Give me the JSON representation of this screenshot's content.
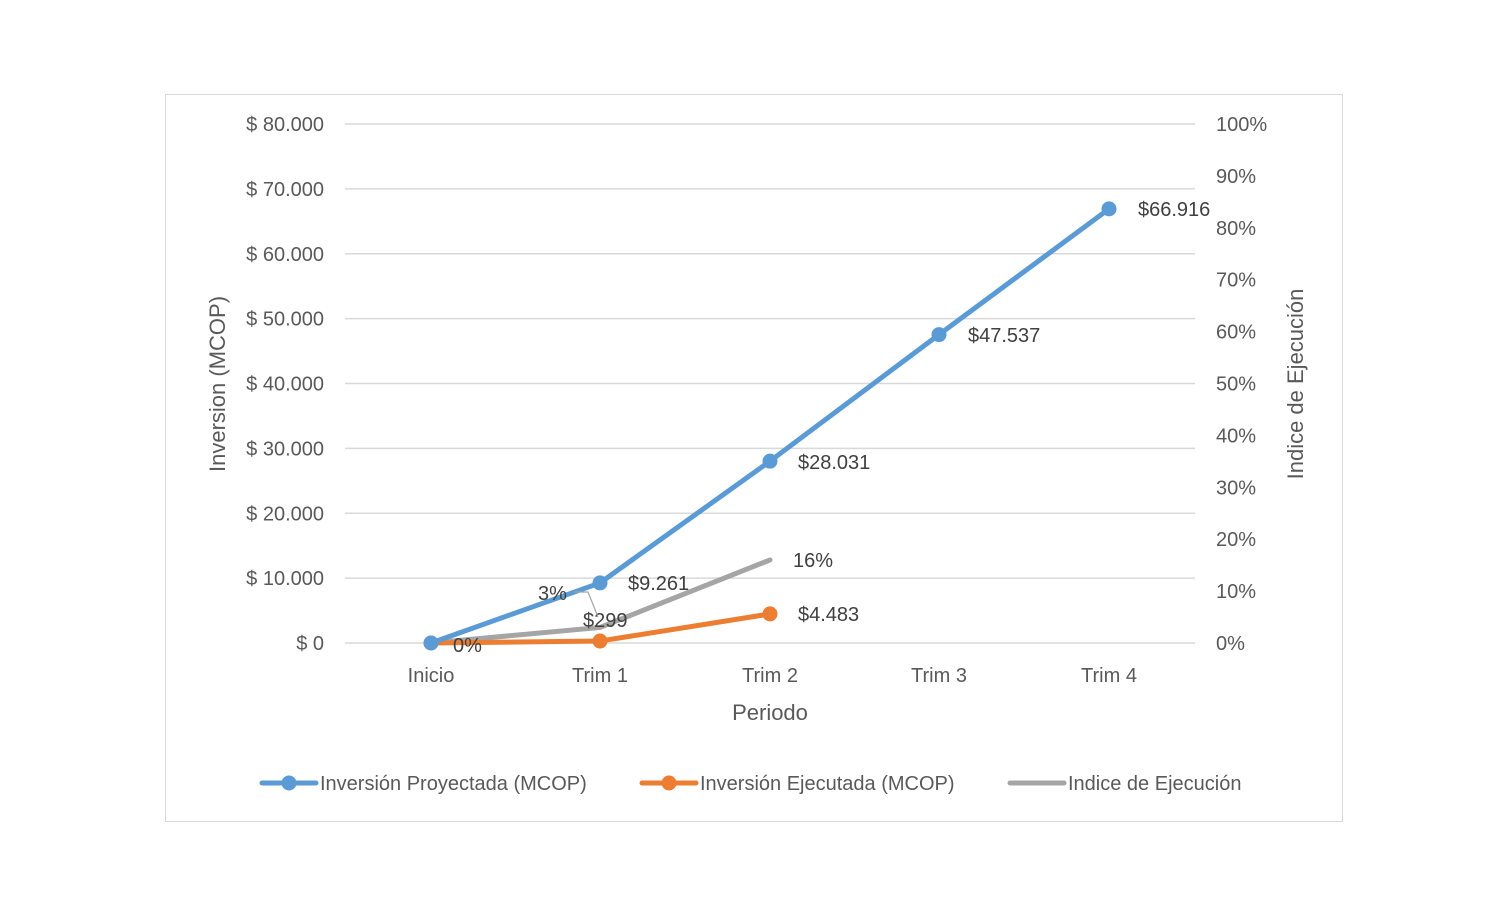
{
  "chart_data": {
    "type": "line",
    "title": "",
    "xlabel": "Periodo",
    "ylabel": "Inversion (MCOP)",
    "y2label": "Indice de Ejecución",
    "categories": [
      "Inicio",
      "Trim 1",
      "Trim 2",
      "Trim 3",
      "Trim 4"
    ],
    "ylim": [
      0,
      80000
    ],
    "y2lim": [
      0,
      1.0
    ],
    "yticks": [
      "$ 0",
      "$ 10.000",
      "$ 20.000",
      "$ 30.000",
      "$ 40.000",
      "$ 50.000",
      "$ 60.000",
      "$ 70.000",
      "$ 80.000"
    ],
    "y2ticks": [
      "0%",
      "10%",
      "20%",
      "30%",
      "40%",
      "50%",
      "60%",
      "70%",
      "80%",
      "90%",
      "100%"
    ],
    "grid": true,
    "legend_position": "bottom",
    "series": [
      {
        "name": "Inversión Proyectada (MCOP)",
        "axis": "left",
        "color": "#5b9bd5",
        "markers": true,
        "values": [
          0,
          9261,
          28031,
          47537,
          66916
        ],
        "labels": [
          "",
          "$9.261",
          "$28.031",
          "$47.537",
          "$66.916"
        ]
      },
      {
        "name": "Inversión Ejecutada (MCOP)",
        "axis": "left",
        "color": "#ed7d31",
        "markers": true,
        "values": [
          0,
          299,
          4483,
          null,
          null
        ],
        "labels": [
          "",
          "$299",
          "$4.483",
          "",
          ""
        ]
      },
      {
        "name": "Indice de Ejecución",
        "axis": "right",
        "color": "#a5a5a5",
        "markers": false,
        "values": [
          0,
          0.03,
          0.16,
          null,
          null
        ],
        "labels": [
          "0%",
          "3%",
          "16%",
          "",
          ""
        ]
      }
    ]
  },
  "axes": {
    "xlabel": "Periodo",
    "ylabel": "Inversion (MCOP)",
    "y2label": "Indice de Ejecución"
  },
  "legend": {
    "items": [
      {
        "label": "Inversión Proyectada (MCOP)",
        "color": "#5b9bd5"
      },
      {
        "label": "Inversión Ejecutada (MCOP)",
        "color": "#ed7d31"
      },
      {
        "label": "Indice de Ejecución",
        "color": "#a5a5a5"
      }
    ]
  }
}
